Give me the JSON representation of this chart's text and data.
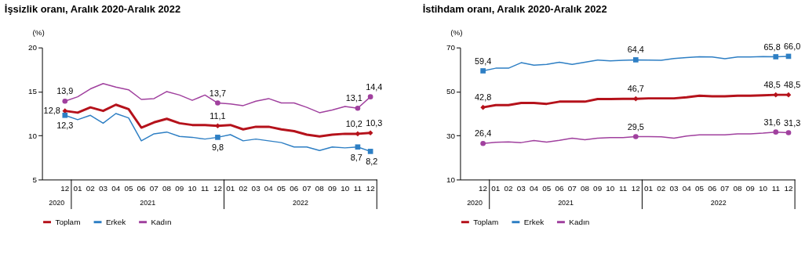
{
  "chart_data": [
    {
      "type": "line",
      "title": "İşsizlik oranı, Aralık 2020-Aralık 2022",
      "ylabel": "(%)",
      "categories": [
        "12",
        "01",
        "02",
        "03",
        "04",
        "05",
        "06",
        "07",
        "08",
        "09",
        "10",
        "11",
        "12",
        "01",
        "02",
        "03",
        "04",
        "05",
        "06",
        "07",
        "08",
        "09",
        "10",
        "11",
        "12"
      ],
      "annotations": [
        "2020",
        "2021",
        "2022"
      ],
      "ylim": [
        5,
        20
      ],
      "yticks": [
        5,
        10,
        15,
        20
      ],
      "grid": false,
      "legend": "bottom",
      "series": [
        {
          "name": "Toplam",
          "color": "#b5121b",
          "values": [
            12.8,
            12.6,
            13.2,
            12.8,
            13.5,
            13.0,
            10.9,
            11.5,
            11.9,
            11.4,
            11.2,
            11.2,
            11.1,
            11.2,
            10.7,
            11.0,
            11.0,
            10.7,
            10.5,
            10.1,
            9.9,
            10.1,
            10.2,
            10.2,
            10.3
          ],
          "value_labels": [
            "12,8",
            null,
            null,
            null,
            null,
            null,
            null,
            null,
            null,
            null,
            null,
            null,
            "11,1",
            null,
            null,
            null,
            null,
            null,
            null,
            null,
            null,
            null,
            null,
            "10,2",
            "10,3"
          ]
        },
        {
          "name": "Erkek",
          "color": "#2e7fc4",
          "values": [
            12.3,
            11.8,
            12.3,
            11.4,
            12.5,
            12.0,
            9.4,
            10.2,
            10.4,
            9.9,
            9.8,
            9.6,
            9.8,
            10.1,
            9.4,
            9.6,
            9.4,
            9.2,
            8.7,
            8.7,
            8.3,
            8.7,
            8.6,
            8.7,
            8.2
          ],
          "value_labels": [
            "12,3",
            null,
            null,
            null,
            null,
            null,
            null,
            null,
            null,
            null,
            null,
            null,
            "9,8",
            null,
            null,
            null,
            null,
            null,
            null,
            null,
            null,
            null,
            null,
            "8,7",
            "8,2"
          ]
        },
        {
          "name": "Kadın",
          "color": "#a0409e",
          "values": [
            13.9,
            14.4,
            15.3,
            15.9,
            15.5,
            15.2,
            14.1,
            14.2,
            15.0,
            14.6,
            14.0,
            14.6,
            13.7,
            13.6,
            13.4,
            13.9,
            14.2,
            13.7,
            13.7,
            13.2,
            12.6,
            12.9,
            13.3,
            13.1,
            14.4
          ],
          "value_labels": [
            "13,9",
            null,
            null,
            null,
            null,
            null,
            null,
            null,
            null,
            null,
            null,
            null,
            "13,7",
            null,
            null,
            null,
            null,
            null,
            null,
            null,
            null,
            null,
            null,
            "13,1",
            "14,4"
          ]
        }
      ]
    },
    {
      "type": "line",
      "title": "İstihdam oranı, Aralık 2020-Aralık 2022",
      "ylabel": "(%)",
      "categories": [
        "12",
        "01",
        "02",
        "03",
        "04",
        "05",
        "06",
        "07",
        "08",
        "09",
        "10",
        "11",
        "12",
        "01",
        "02",
        "03",
        "04",
        "05",
        "06",
        "07",
        "08",
        "09",
        "10",
        "11",
        "12"
      ],
      "annotations": [
        "2020",
        "2021",
        "2022"
      ],
      "ylim": [
        10,
        70
      ],
      "yticks": [
        10,
        30,
        50,
        70
      ],
      "grid": false,
      "legend": "bottom",
      "series": [
        {
          "name": "Toplam",
          "color": "#b5121b",
          "values": [
            42.8,
            43.8,
            43.8,
            44.8,
            44.8,
            44.4,
            45.4,
            45.4,
            45.4,
            46.6,
            46.6,
            46.7,
            46.7,
            46.9,
            46.9,
            46.9,
            47.4,
            48.1,
            47.8,
            47.8,
            48.1,
            48.1,
            48.3,
            48.5,
            48.5
          ],
          "value_labels": [
            "42,8",
            null,
            null,
            null,
            null,
            null,
            null,
            null,
            null,
            null,
            null,
            null,
            "46,7",
            null,
            null,
            null,
            null,
            null,
            null,
            null,
            null,
            null,
            null,
            "48,5",
            "48,5"
          ]
        },
        {
          "name": "Erkek",
          "color": "#2e7fc4",
          "values": [
            59.4,
            60.6,
            60.6,
            63.1,
            62.0,
            62.3,
            63.3,
            62.3,
            63.3,
            64.3,
            63.9,
            64.2,
            64.4,
            64.3,
            64.2,
            65.0,
            65.4,
            65.8,
            65.7,
            64.9,
            65.7,
            65.7,
            65.9,
            65.8,
            66.0
          ],
          "value_labels": [
            "59,4",
            null,
            null,
            null,
            null,
            null,
            null,
            null,
            null,
            null,
            null,
            null,
            "64,4",
            null,
            null,
            null,
            null,
            null,
            null,
            null,
            null,
            null,
            null,
            "65,8",
            "66,0"
          ]
        },
        {
          "name": "Kadın",
          "color": "#a0409e",
          "values": [
            26.4,
            26.9,
            27.1,
            26.8,
            27.7,
            27.0,
            27.8,
            28.8,
            28.1,
            28.8,
            29.1,
            29.1,
            29.5,
            29.5,
            29.4,
            28.8,
            29.8,
            30.3,
            30.3,
            30.3,
            30.8,
            30.8,
            31.1,
            31.6,
            31.3
          ],
          "value_labels": [
            "26,4",
            null,
            null,
            null,
            null,
            null,
            null,
            null,
            null,
            null,
            null,
            null,
            "29,5",
            null,
            null,
            null,
            null,
            null,
            null,
            null,
            null,
            null,
            null,
            "31,6",
            "31,3"
          ]
        }
      ]
    }
  ]
}
